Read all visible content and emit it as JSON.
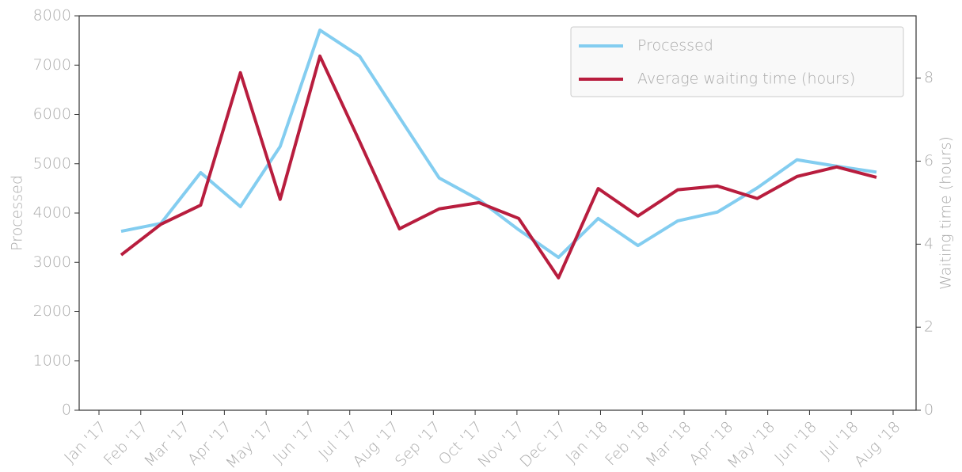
{
  "chart_data": {
    "type": "line",
    "ylabel": "Processed",
    "y2label": "Waiting time (hours)",
    "categories": [
      "Jan '17",
      "Feb '17",
      "Mar '17",
      "Apr '17",
      "May '17",
      "Jun '17",
      "Jul '17",
      "Aug '17",
      "Sep '17",
      "Oct '17",
      "Nov '17",
      "Dec '17",
      "Jan '18",
      "Feb '18",
      "Mar '18",
      "Apr '18",
      "May '18",
      "Jun '18",
      "Jul '18",
      "Aug '18"
    ],
    "series": [
      {
        "name": "Processed",
        "color": "#83cdf0",
        "values": [
          3630,
          3790,
          4820,
          4130,
          5350,
          7710,
          7180,
          5940,
          4710,
          4270,
          3660,
          3100,
          3890,
          3340,
          3840,
          4020,
          4510,
          5080,
          4950,
          4830
        ]
      },
      {
        "name": "Average waiting time (hours)",
        "color": "#b81d3e",
        "axis": "y2",
        "values": [
          3.74,
          4.48,
          4.94,
          8.13,
          5.08,
          8.53,
          6.47,
          4.37,
          4.85,
          5.0,
          4.62,
          3.19,
          5.34,
          4.68,
          5.31,
          5.4,
          5.1,
          5.63,
          5.86,
          5.61
        ]
      }
    ],
    "ylim": [
      0,
      8000
    ],
    "yticks": [
      0,
      1000,
      2000,
      3000,
      4000,
      5000,
      6000,
      7000,
      8000
    ],
    "y2lim": [
      0,
      9.5
    ],
    "y2ticks": [
      0,
      2,
      4,
      6,
      8
    ],
    "legend": "upper right"
  }
}
